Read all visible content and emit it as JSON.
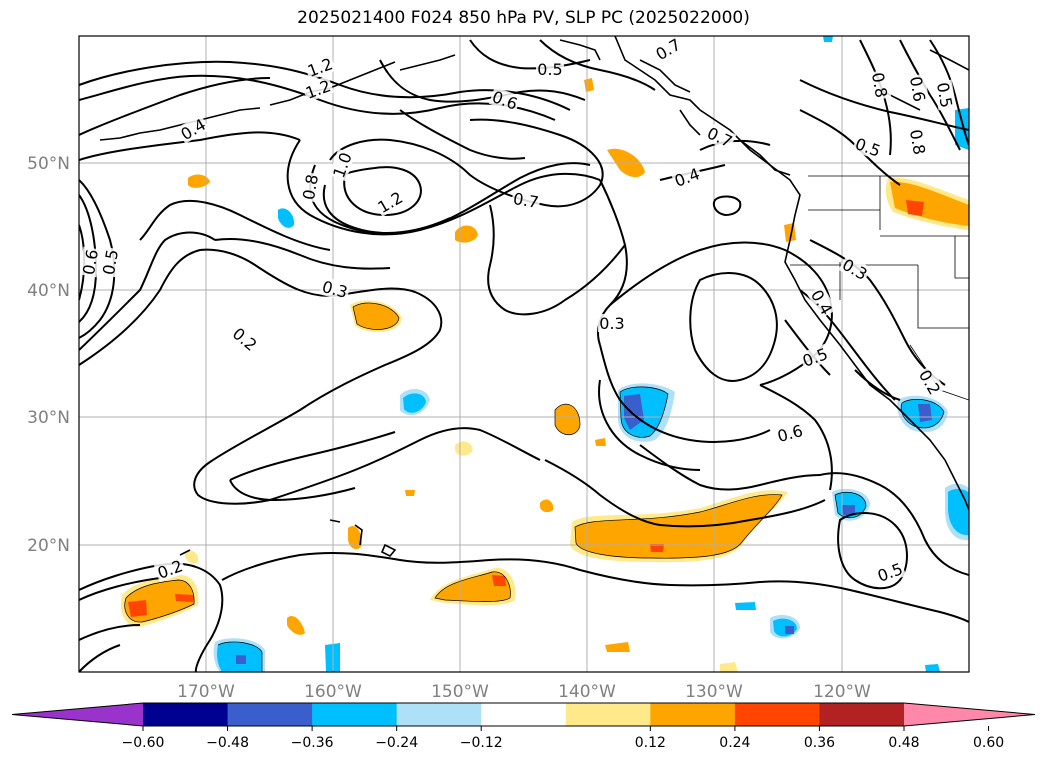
{
  "title": "2025021400 F024 850 hPa PV, SLP PC (2025022000)",
  "map": {
    "lon_range": [
      -180,
      -110
    ],
    "lat_range": [
      10,
      60
    ],
    "lat_ticks": [
      "50°N",
      "40°N",
      "30°N",
      "20°N"
    ],
    "lon_ticks": [
      "170°W",
      "160°W",
      "150°W",
      "140°W",
      "130°W",
      "120°W"
    ],
    "grid": true,
    "contour_labels": [
      "0.7",
      "0.5",
      "0.8",
      "0.6",
      "0.5",
      "1.2",
      "1.2",
      "0.4",
      "0.6",
      "0.7",
      "0.8",
      "0.5",
      "1.0",
      "0.8",
      "1.2",
      "0.7",
      "0.4",
      "0.6",
      "0.5",
      "0.3",
      "0.3",
      "0.4",
      "0.2",
      "0.3",
      "0.5",
      "0.2",
      "0.6",
      "0.2",
      "0.5"
    ]
  },
  "colorbar": {
    "colors": {
      "ext_low": "#9933cc",
      "c1": "#000090",
      "c2": "#3a5fcd",
      "c3": "#00bfff",
      "c4": "#aee0f8",
      "c5": "#ffffff",
      "c6": "#ffe98a",
      "c7": "#ffa500",
      "c8": "#ff4500",
      "c9": "#b22222",
      "ext_high": "#ff88aa"
    },
    "tick_labels": [
      "−0.60",
      "−0.48",
      "−0.36",
      "−0.24",
      "−0.12",
      "0.12",
      "0.24",
      "0.36",
      "0.48",
      "0.60"
    ]
  }
}
